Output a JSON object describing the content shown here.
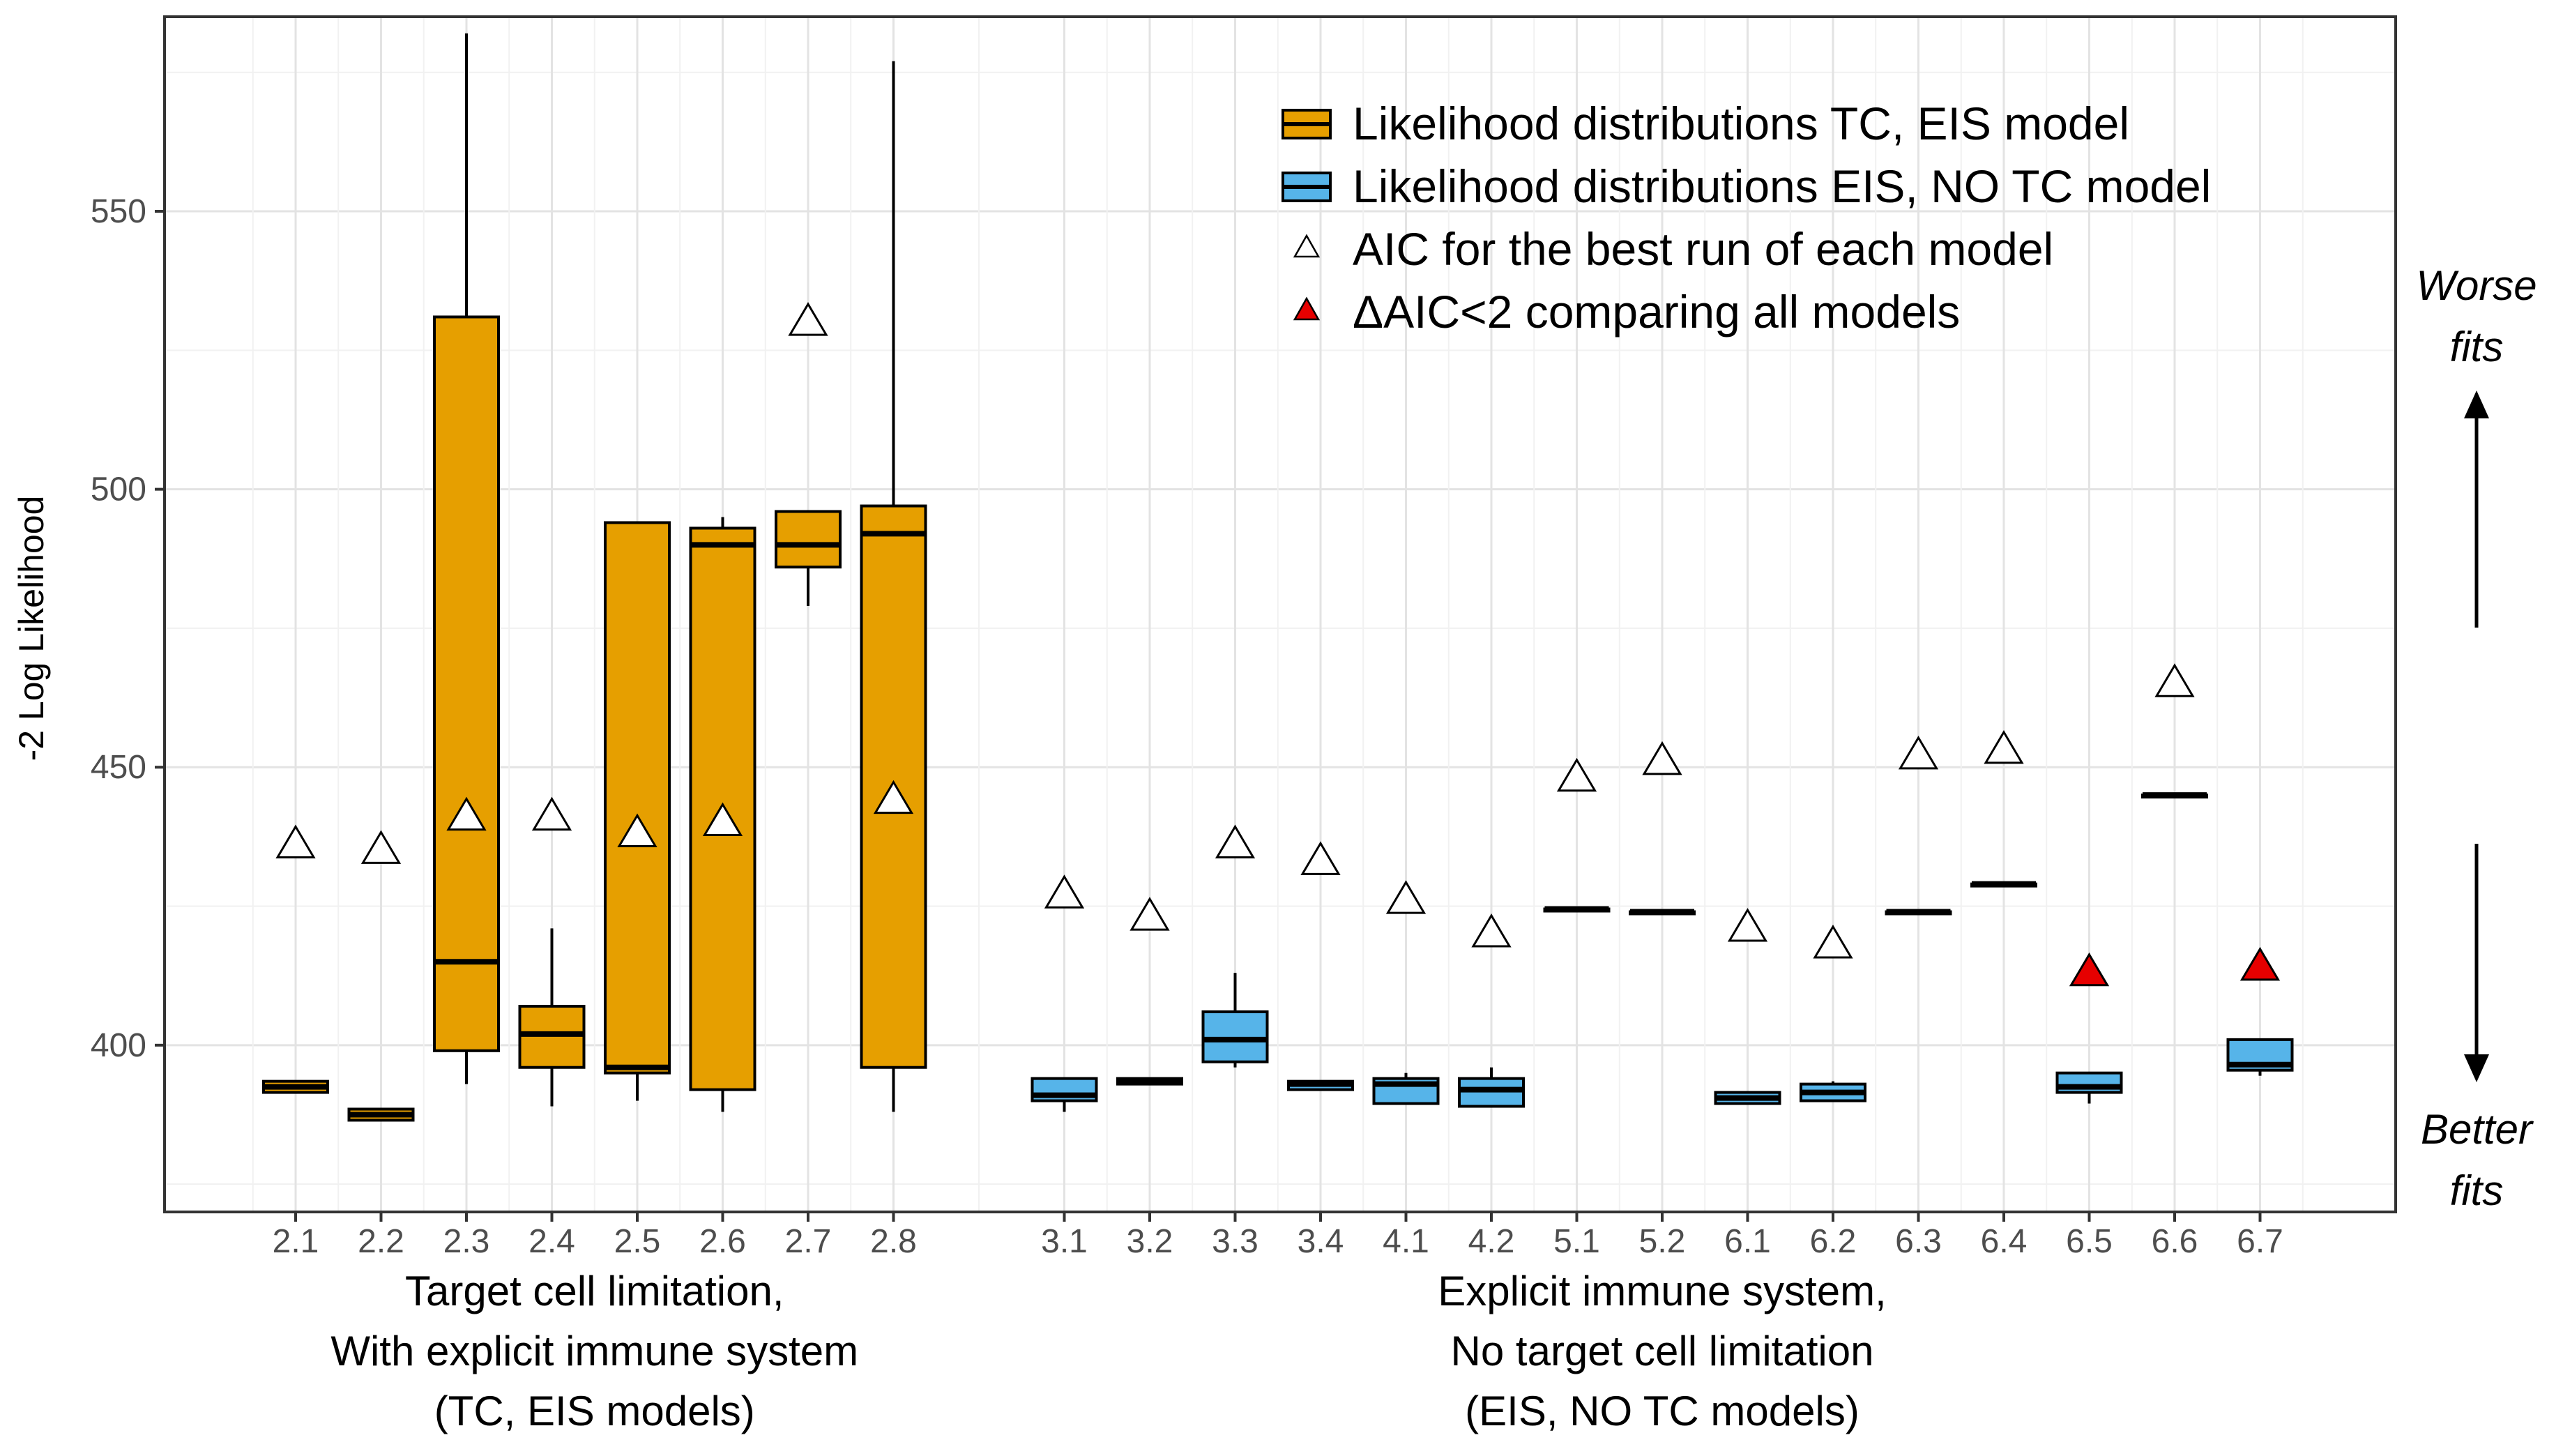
{
  "chart_data": {
    "type": "boxplot",
    "ylabel": "-2 Log Likelihood",
    "ylim": [
      370,
      585
    ],
    "y_ticks": [
      400,
      450,
      500,
      550
    ],
    "y_tick_labels": [
      "400",
      "450",
      "500",
      "550"
    ],
    "grid": true,
    "colors": {
      "tc_eis": "#E69F00",
      "eis_no_tc": "#56B4E9",
      "aic_best": "#ffffff",
      "delta_aic": "#e60000",
      "box_outline": "#000000"
    },
    "legend": {
      "position": "top-right",
      "entries": [
        {
          "label": "Likelihood distributions TC, EIS model",
          "symbol": "box",
          "color": "#E69F00"
        },
        {
          "label": "Likelihood distributions EIS, NO TC model",
          "symbol": "box",
          "color": "#56B4E9"
        },
        {
          "label": "AIC for the best run of each model",
          "symbol": "triangle",
          "color": "#ffffff"
        },
        {
          "label": "ΔAIC<2 comparing all models",
          "symbol": "triangle",
          "color": "#e60000"
        }
      ]
    },
    "groups": [
      {
        "lines": [
          "Target cell limitation,",
          "With explicit immune system",
          "(TC, EIS models)"
        ]
      },
      {
        "lines": [
          "Explicit immune system,",
          "No target cell limitation",
          "(EIS, NO TC models)"
        ]
      }
    ],
    "annotations": {
      "worse": [
        "Worse",
        "fits"
      ],
      "better": [
        "Better",
        "fits"
      ]
    },
    "series": [
      {
        "name": "2.1",
        "group": 0,
        "q1": 391.5,
        "median": 392.5,
        "q3": 393.5,
        "whisker_low": 391.5,
        "whisker_high": 393.5,
        "aic": 436,
        "aic_red": false
      },
      {
        "name": "2.2",
        "group": 0,
        "q1": 386.5,
        "median": 387.5,
        "q3": 388.5,
        "whisker_low": 386.5,
        "whisker_high": 388.5,
        "aic": 435,
        "aic_red": false
      },
      {
        "name": "2.3",
        "group": 0,
        "q1": 399,
        "median": 415,
        "q3": 531,
        "whisker_low": 393,
        "whisker_high": 582,
        "aic": 441,
        "aic_red": false
      },
      {
        "name": "2.4",
        "group": 0,
        "q1": 396,
        "median": 402,
        "q3": 407,
        "whisker_low": 389,
        "whisker_high": 421,
        "aic": 441,
        "aic_red": false
      },
      {
        "name": "2.5",
        "group": 0,
        "q1": 395,
        "median": 396,
        "q3": 494,
        "whisker_low": 390,
        "whisker_high": 494,
        "aic": 438,
        "aic_red": false
      },
      {
        "name": "2.6",
        "group": 0,
        "q1": 392,
        "median": 490,
        "q3": 493,
        "whisker_low": 388,
        "whisker_high": 495,
        "aic": 440,
        "aic_red": false
      },
      {
        "name": "2.7",
        "group": 0,
        "q1": 486,
        "median": 490,
        "q3": 496,
        "whisker_low": 479,
        "whisker_high": 496,
        "aic": 530,
        "aic_red": false
      },
      {
        "name": "2.8",
        "group": 0,
        "q1": 396,
        "median": 492,
        "q3": 497,
        "whisker_low": 388,
        "whisker_high": 577,
        "aic": 444,
        "aic_red": false
      },
      {
        "name": "3.1",
        "group": 1,
        "q1": 390,
        "median": 391,
        "q3": 394,
        "whisker_low": 388,
        "whisker_high": 394,
        "aic": 427,
        "aic_red": false
      },
      {
        "name": "3.2",
        "group": 1,
        "q1": 393,
        "median": 393.5,
        "q3": 394,
        "whisker_low": 393,
        "whisker_high": 394,
        "aic": 423,
        "aic_red": false
      },
      {
        "name": "3.3",
        "group": 1,
        "q1": 397,
        "median": 401,
        "q3": 406,
        "whisker_low": 396,
        "whisker_high": 413,
        "aic": 436,
        "aic_red": false
      },
      {
        "name": "3.4",
        "group": 1,
        "q1": 392,
        "median": 393,
        "q3": 393.5,
        "whisker_low": 392,
        "whisker_high": 393.5,
        "aic": 433,
        "aic_red": false
      },
      {
        "name": "4.1",
        "group": 1,
        "q1": 389.5,
        "median": 393,
        "q3": 394,
        "whisker_low": 389.5,
        "whisker_high": 395,
        "aic": 426,
        "aic_red": false
      },
      {
        "name": "4.2",
        "group": 1,
        "q1": 389,
        "median": 392,
        "q3": 394,
        "whisker_low": 389,
        "whisker_high": 396,
        "aic": 420,
        "aic_red": false
      },
      {
        "name": "5.1",
        "group": 1,
        "q1": 424.5,
        "median": 424.5,
        "q3": 424.5,
        "whisker_low": 424.5,
        "whisker_high": 424.5,
        "aic": 448,
        "aic_red": false
      },
      {
        "name": "5.2",
        "group": 1,
        "q1": 424,
        "median": 424,
        "q3": 424,
        "whisker_low": 424,
        "whisker_high": 424,
        "aic": 451,
        "aic_red": false
      },
      {
        "name": "6.1",
        "group": 1,
        "q1": 389.5,
        "median": 390.5,
        "q3": 391.5,
        "whisker_low": 389.5,
        "whisker_high": 391.5,
        "aic": 421,
        "aic_red": false
      },
      {
        "name": "6.2",
        "group": 1,
        "q1": 390,
        "median": 391.5,
        "q3": 393,
        "whisker_low": 390,
        "whisker_high": 393.5,
        "aic": 418,
        "aic_red": false
      },
      {
        "name": "6.3",
        "group": 1,
        "q1": 424,
        "median": 424,
        "q3": 424,
        "whisker_low": 424,
        "whisker_high": 424,
        "aic": 452,
        "aic_red": false
      },
      {
        "name": "6.4",
        "group": 1,
        "q1": 429,
        "median": 429,
        "q3": 429,
        "whisker_low": 429,
        "whisker_high": 429,
        "aic": 453,
        "aic_red": false
      },
      {
        "name": "6.5",
        "group": 1,
        "q1": 391.5,
        "median": 392.5,
        "q3": 395,
        "whisker_low": 389.5,
        "whisker_high": 395,
        "aic": 413,
        "aic_red": true
      },
      {
        "name": "6.6",
        "group": 1,
        "q1": 445,
        "median": 445,
        "q3": 445,
        "whisker_low": 445,
        "whisker_high": 445,
        "aic": 465,
        "aic_red": false
      },
      {
        "name": "6.7",
        "group": 1,
        "q1": 395.5,
        "median": 396.5,
        "q3": 401,
        "whisker_low": 394.5,
        "whisker_high": 401,
        "aic": 414,
        "aic_red": true
      }
    ]
  }
}
